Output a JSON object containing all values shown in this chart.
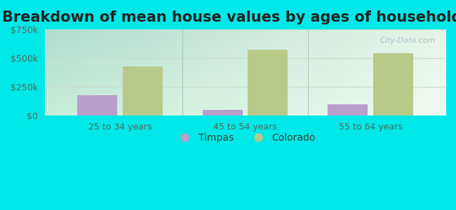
{
  "title": "Breakdown of mean house values by ages of householders",
  "categories": [
    "25 to 34 years",
    "45 to 54 years",
    "55 to 64 years"
  ],
  "timpas_values": [
    175000,
    50000,
    100000
  ],
  "colorado_values": [
    425000,
    575000,
    545000
  ],
  "timpas_color": "#b89fcc",
  "colorado_color": "#b8c98a",
  "ylim": [
    0,
    750000
  ],
  "yticks": [
    0,
    250000,
    500000,
    750000
  ],
  "ytick_labels": [
    "$0",
    "$250k",
    "$500k",
    "$750k"
  ],
  "background_color": "#00e8e8",
  "bar_width": 0.32,
  "legend_timpas": "Timpas",
  "legend_colorado": "Colorado",
  "title_fontsize": 15,
  "tick_fontsize": 9,
  "legend_fontsize": 10,
  "grid_color": "#c8ddc8",
  "watermark": "City-Data.com",
  "separator_color": "#aaccbb"
}
